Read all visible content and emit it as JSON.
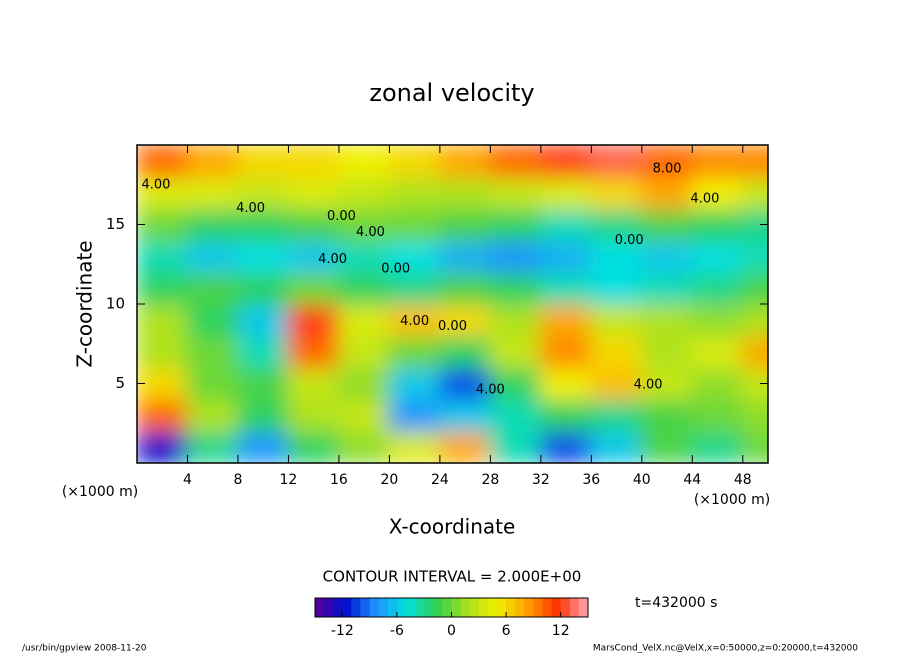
{
  "chart_data": {
    "type": "contour",
    "title": "zonal velocity",
    "x_label": "X-coordinate",
    "y_label": "Z-coordinate",
    "x_unit": "(×1000 m)",
    "y_unit": "(×1000 m)",
    "x": [
      2,
      6,
      10,
      14,
      18,
      22,
      26,
      30,
      34,
      38,
      42,
      46,
      50
    ],
    "y": [
      1,
      3,
      5,
      7,
      9,
      11,
      13,
      15,
      17,
      19
    ],
    "values": [
      [
        -12,
        -3,
        -8,
        -2,
        1,
        4,
        8,
        -4,
        -10,
        -6,
        -1,
        -3,
        0
      ],
      [
        10,
        2,
        -2,
        2,
        3,
        -8,
        -6,
        -4,
        -2,
        -3,
        -1,
        0,
        1
      ],
      [
        6,
        0,
        -1,
        3,
        1,
        -6,
        -10,
        -2,
        5,
        7,
        3,
        1,
        3
      ],
      [
        2,
        0,
        -4,
        10,
        3,
        0,
        -2,
        3,
        9,
        6,
        2,
        4,
        8
      ],
      [
        2,
        -2,
        -6,
        12,
        4,
        7,
        6,
        2,
        8,
        3,
        2,
        1,
        2
      ],
      [
        -2,
        -1,
        -2,
        0,
        -2,
        -3,
        -1,
        -2,
        -4,
        -5,
        -4,
        -3,
        -1
      ],
      [
        -4,
        -6,
        -5,
        -6,
        -4,
        -5,
        -7,
        -8,
        -7,
        -5,
        -6,
        -5,
        -4
      ],
      [
        0,
        -2,
        -2,
        -1,
        0,
        0,
        -1,
        -2,
        -4,
        -3,
        -1,
        -2,
        -3
      ],
      [
        4,
        4,
        3,
        4,
        3,
        2,
        2,
        3,
        4,
        6,
        8,
        5,
        3
      ],
      [
        10,
        8,
        6,
        6,
        5,
        6,
        8,
        10,
        12,
        13,
        10,
        9,
        9
      ]
    ],
    "xlim": [
      0,
      50
    ],
    "ylim": [
      0,
      20
    ],
    "xticks": [
      4,
      8,
      12,
      16,
      20,
      24,
      28,
      32,
      36,
      40,
      44,
      48
    ],
    "yticks": [
      5,
      10,
      15
    ],
    "contour_labels": [
      "4.00",
      "4.00",
      "0.00",
      "4.00",
      "4.00",
      "0.00",
      "4.00",
      "0.00",
      "4.00",
      "4.00",
      "8.00",
      "4.00",
      "0.00"
    ],
    "contour_interval": "CONTOUR INTERVAL = 2.000E+00",
    "time_label": "t=432000 s",
    "clim": [
      -15,
      15
    ],
    "cticks": [
      -12,
      -6,
      0,
      6,
      12
    ],
    "colormap": [
      "#5a0096",
      "#0010d0",
      "#1e90ff",
      "#00e0e0",
      "#30d050",
      "#a8e020",
      "#f0f000",
      "#ffa000",
      "#ff3000",
      "#ffa8b8"
    ],
    "footer_left": "/usr/bin/gpview  2008-11-20",
    "footer_right": "MarsCond_VelX.nc@VelX,x=0:50000,z=0:20000,t=432000"
  }
}
